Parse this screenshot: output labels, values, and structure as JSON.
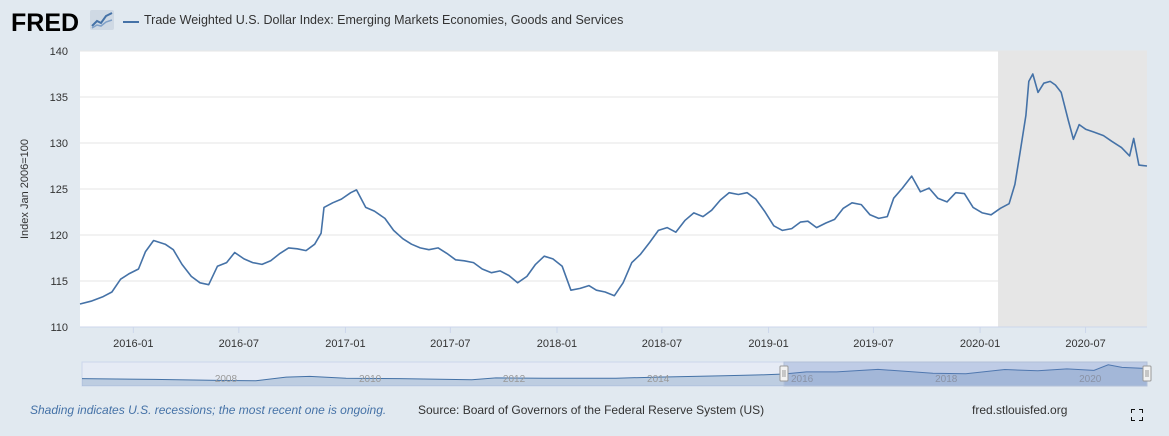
{
  "header": {
    "logo_text": "FRED",
    "logo_icon": "line-chart-icon",
    "series_title": "Trade Weighted U.S. Dollar Index: Emerging Markets Economies, Goods and Services",
    "series_color": "#4572a7"
  },
  "footer": {
    "recession_note": "Shading indicates U.S. recessions; the most recent one is ongoing.",
    "source": "Source: Board of Governors of the Federal Reserve System (US)",
    "site": "fred.stlouisfed.org",
    "note_color": "#4572a7"
  },
  "colors": {
    "plot_background": "#ffffff",
    "recession_shade": "#e6e6e6",
    "gridline": "#e6e6e6",
    "navigator_mask": "rgba(102,133,194,0.3)"
  },
  "chart_data": {
    "type": "line",
    "ylabel": "Index Jan 2006=100",
    "ylim": [
      110,
      140
    ],
    "yticks": [
      110,
      115,
      120,
      125,
      130,
      135,
      140
    ],
    "xlim": [
      "2015-10-01",
      "2020-10-15"
    ],
    "xticks": [
      "2016-01",
      "2016-07",
      "2017-01",
      "2017-07",
      "2018-01",
      "2018-07",
      "2019-01",
      "2019-07",
      "2020-01",
      "2020-07"
    ],
    "grid": "horizontal",
    "legend": "top-left",
    "recession": {
      "start": "2020-02-01",
      "end": "2020-10-15"
    },
    "series": [
      {
        "name": "Trade Weighted U.S. Dollar Index: Emerging Markets Economies, Goods and Services",
        "color": "#4572a7",
        "points": [
          [
            "2015-10-01",
            112.5
          ],
          [
            "2015-10-20",
            112.8
          ],
          [
            "2015-11-10",
            113.3
          ],
          [
            "2015-11-25",
            113.8
          ],
          [
            "2015-12-10",
            115.2
          ],
          [
            "2015-12-25",
            115.8
          ],
          [
            "2016-01-10",
            116.3
          ],
          [
            "2016-01-22",
            118.2
          ],
          [
            "2016-02-05",
            119.4
          ],
          [
            "2016-02-25",
            119.0
          ],
          [
            "2016-03-10",
            118.4
          ],
          [
            "2016-03-25",
            116.8
          ],
          [
            "2016-04-10",
            115.5
          ],
          [
            "2016-04-25",
            114.8
          ],
          [
            "2016-05-10",
            114.6
          ],
          [
            "2016-05-25",
            116.6
          ],
          [
            "2016-06-10",
            117.0
          ],
          [
            "2016-06-24",
            118.1
          ],
          [
            "2016-07-10",
            117.4
          ],
          [
            "2016-07-25",
            117.0
          ],
          [
            "2016-08-10",
            116.8
          ],
          [
            "2016-08-25",
            117.2
          ],
          [
            "2016-09-10",
            118.0
          ],
          [
            "2016-09-25",
            118.6
          ],
          [
            "2016-10-10",
            118.5
          ],
          [
            "2016-10-25",
            118.3
          ],
          [
            "2016-11-09",
            119.0
          ],
          [
            "2016-11-20",
            120.2
          ],
          [
            "2016-11-25",
            123.0
          ],
          [
            "2016-12-10",
            123.5
          ],
          [
            "2016-12-25",
            123.9
          ],
          [
            "2017-01-10",
            124.6
          ],
          [
            "2017-01-20",
            124.9
          ],
          [
            "2017-02-05",
            123.0
          ],
          [
            "2017-02-20",
            122.6
          ],
          [
            "2017-03-10",
            121.8
          ],
          [
            "2017-03-25",
            120.5
          ],
          [
            "2017-04-10",
            119.6
          ],
          [
            "2017-04-25",
            119.0
          ],
          [
            "2017-05-10",
            118.6
          ],
          [
            "2017-05-25",
            118.4
          ],
          [
            "2017-06-10",
            118.6
          ],
          [
            "2017-06-25",
            118.0
          ],
          [
            "2017-07-10",
            117.3
          ],
          [
            "2017-07-25",
            117.2
          ],
          [
            "2017-08-10",
            117.0
          ],
          [
            "2017-08-25",
            116.3
          ],
          [
            "2017-09-10",
            115.9
          ],
          [
            "2017-09-25",
            116.1
          ],
          [
            "2017-10-10",
            115.6
          ],
          [
            "2017-10-25",
            114.8
          ],
          [
            "2017-11-10",
            115.5
          ],
          [
            "2017-11-25",
            116.8
          ],
          [
            "2017-12-10",
            117.7
          ],
          [
            "2017-12-25",
            117.4
          ],
          [
            "2018-01-10",
            116.6
          ],
          [
            "2018-01-25",
            114.0
          ],
          [
            "2018-02-10",
            114.2
          ],
          [
            "2018-02-25",
            114.5
          ],
          [
            "2018-03-10",
            114.0
          ],
          [
            "2018-03-25",
            113.8
          ],
          [
            "2018-04-10",
            113.4
          ],
          [
            "2018-04-25",
            114.8
          ],
          [
            "2018-05-10",
            117.0
          ],
          [
            "2018-05-25",
            117.9
          ],
          [
            "2018-06-10",
            119.2
          ],
          [
            "2018-06-25",
            120.5
          ],
          [
            "2018-07-10",
            120.8
          ],
          [
            "2018-07-25",
            120.3
          ],
          [
            "2018-08-10",
            121.6
          ],
          [
            "2018-08-25",
            122.4
          ],
          [
            "2018-09-10",
            122.0
          ],
          [
            "2018-09-25",
            122.7
          ],
          [
            "2018-10-10",
            123.8
          ],
          [
            "2018-10-25",
            124.6
          ],
          [
            "2018-11-10",
            124.4
          ],
          [
            "2018-11-25",
            124.6
          ],
          [
            "2018-12-10",
            123.9
          ],
          [
            "2018-12-25",
            122.6
          ],
          [
            "2019-01-10",
            121.0
          ],
          [
            "2019-01-25",
            120.5
          ],
          [
            "2019-02-10",
            120.7
          ],
          [
            "2019-02-25",
            121.4
          ],
          [
            "2019-03-10",
            121.5
          ],
          [
            "2019-03-25",
            120.8
          ],
          [
            "2019-04-10",
            121.3
          ],
          [
            "2019-04-25",
            121.7
          ],
          [
            "2019-05-10",
            122.9
          ],
          [
            "2019-05-25",
            123.5
          ],
          [
            "2019-06-10",
            123.3
          ],
          [
            "2019-06-25",
            122.2
          ],
          [
            "2019-07-10",
            121.8
          ],
          [
            "2019-07-25",
            122.0
          ],
          [
            "2019-08-05",
            124.0
          ],
          [
            "2019-08-20",
            125.1
          ],
          [
            "2019-09-05",
            126.4
          ],
          [
            "2019-09-20",
            124.7
          ],
          [
            "2019-10-05",
            125.1
          ],
          [
            "2019-10-20",
            124.0
          ],
          [
            "2019-11-05",
            123.6
          ],
          [
            "2019-11-20",
            124.6
          ],
          [
            "2019-12-05",
            124.5
          ],
          [
            "2019-12-20",
            123.0
          ],
          [
            "2020-01-05",
            122.4
          ],
          [
            "2020-01-20",
            122.2
          ],
          [
            "2020-02-05",
            122.9
          ],
          [
            "2020-02-20",
            123.4
          ],
          [
            "2020-03-01",
            125.5
          ],
          [
            "2020-03-10",
            129.0
          ],
          [
            "2020-03-20",
            133.0
          ],
          [
            "2020-03-25",
            136.7
          ],
          [
            "2020-04-01",
            137.5
          ],
          [
            "2020-04-10",
            135.5
          ],
          [
            "2020-04-20",
            136.5
          ],
          [
            "2020-05-01",
            136.7
          ],
          [
            "2020-05-10",
            136.3
          ],
          [
            "2020-05-20",
            135.5
          ],
          [
            "2020-06-01",
            132.5
          ],
          [
            "2020-06-10",
            130.4
          ],
          [
            "2020-06-20",
            132.0
          ],
          [
            "2020-07-01",
            131.5
          ],
          [
            "2020-07-15",
            131.2
          ],
          [
            "2020-08-01",
            130.8
          ],
          [
            "2020-08-15",
            130.2
          ],
          [
            "2020-09-01",
            129.5
          ],
          [
            "2020-09-15",
            128.6
          ],
          [
            "2020-09-22",
            130.5
          ],
          [
            "2020-10-01",
            127.6
          ],
          [
            "2020-10-15",
            127.5
          ]
        ]
      }
    ],
    "navigator": {
      "xticks": [
        "2008",
        "2010",
        "2012",
        "2014",
        "2016",
        "2018",
        "2020"
      ],
      "xlim": [
        "2006-01-01",
        "2020-10-15"
      ],
      "selected": [
        "2015-10-01",
        "2020-10-15"
      ],
      "series_points": [
        [
          "2006-01-01",
          100
        ],
        [
          "2007-01-01",
          98
        ],
        [
          "2008-01-01",
          95
        ],
        [
          "2008-06-01",
          94
        ],
        [
          "2008-11-01",
          104
        ],
        [
          "2009-03-01",
          106
        ],
        [
          "2009-09-01",
          101
        ],
        [
          "2010-06-01",
          100
        ],
        [
          "2011-06-01",
          97
        ],
        [
          "2011-10-01",
          102
        ],
        [
          "2012-06-01",
          101
        ],
        [
          "2013-06-01",
          101
        ],
        [
          "2014-01-01",
          104
        ],
        [
          "2014-12-01",
          108
        ],
        [
          "2015-06-01",
          110
        ],
        [
          "2015-10-01",
          112.5
        ],
        [
          "2016-01-22",
          118.2
        ],
        [
          "2016-06-24",
          118.1
        ],
        [
          "2017-01-20",
          124.9
        ],
        [
          "2017-10-25",
          114.8
        ],
        [
          "2018-04-10",
          113.4
        ],
        [
          "2018-10-25",
          124.6
        ],
        [
          "2019-04-10",
          121.3
        ],
        [
          "2019-09-05",
          126.4
        ],
        [
          "2020-01-20",
          122.2
        ],
        [
          "2020-04-01",
          137.5
        ],
        [
          "2020-06-10",
          130.4
        ],
        [
          "2020-10-15",
          127.5
        ]
      ],
      "ylim": [
        80,
        145
      ]
    }
  }
}
